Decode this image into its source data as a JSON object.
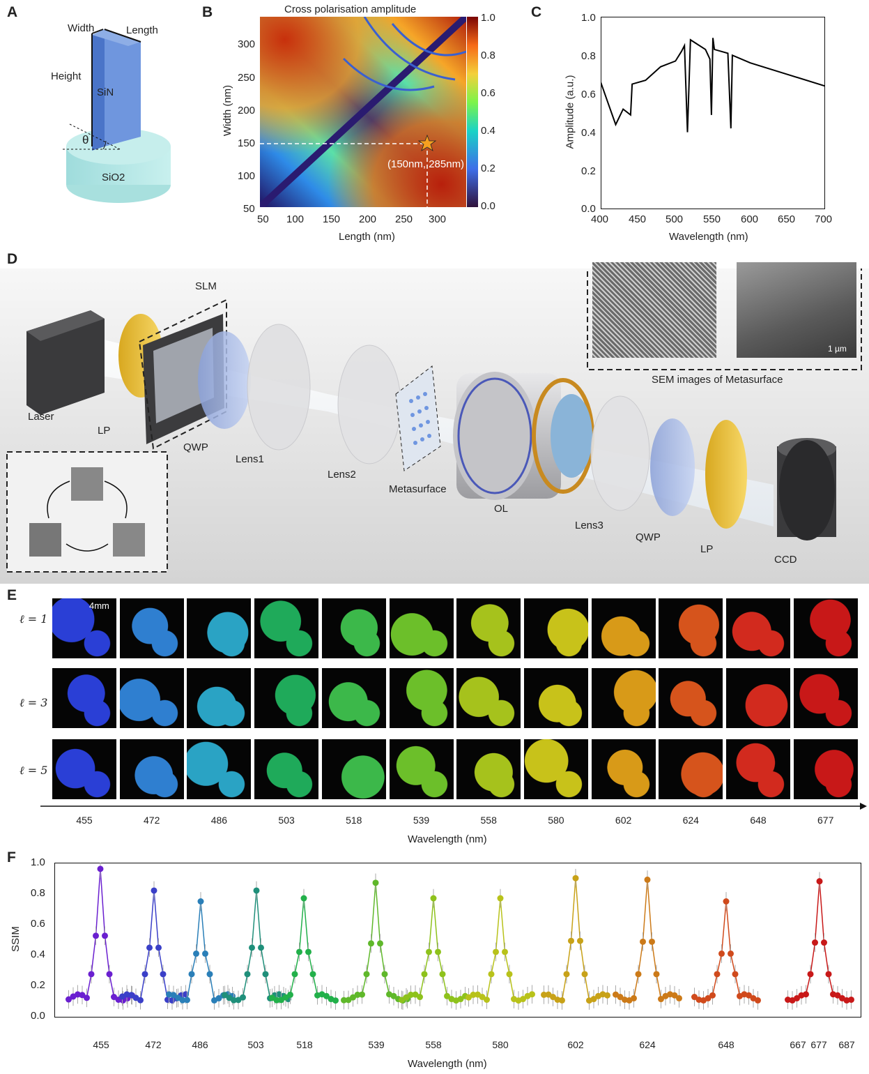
{
  "panels": {
    "a": "A",
    "b": "B",
    "c": "C",
    "d": "D",
    "e": "E",
    "f": "F"
  },
  "panel_a": {
    "width": "Width",
    "length": "Length",
    "height": "Height",
    "pillar": "SiN",
    "substrate": "SiO2",
    "theta": "θ"
  },
  "panel_b": {
    "title": "Cross polarisation amplitude",
    "xlabel": "Length (nm)",
    "ylabel": "Width (nm)",
    "xticks": [
      "50",
      "100",
      "150",
      "200",
      "250",
      "300"
    ],
    "yticks": [
      "50",
      "100",
      "150",
      "200",
      "250",
      "300"
    ],
    "cbar_ticks": [
      "1.0",
      "0.8",
      "0.6",
      "0.4",
      "0.2",
      "0.0"
    ],
    "annotation": "(150nm, 285nm)"
  },
  "panel_d": {
    "labels": {
      "laser": "Laser",
      "lp1": "LP",
      "slm": "SLM",
      "qwp1": "QWP",
      "lens1": "Lens1",
      "lens2": "Lens2",
      "meta": "Metasurface",
      "ol": "OL",
      "lens3": "Lens3",
      "qwp2": "QWP",
      "lp2": "LP",
      "ccd": "CCD"
    },
    "sem_caption": "SEM images of Metasurface",
    "scale": "1 µm"
  },
  "panel_e": {
    "rows": [
      "ℓ = 1",
      "ℓ = 3",
      "ℓ = 5"
    ],
    "scale": "4mm",
    "wavelengths": [
      "455",
      "472",
      "486",
      "503",
      "518",
      "539",
      "558",
      "580",
      "602",
      "624",
      "648",
      "677"
    ],
    "colors": [
      "#2a3fd6",
      "#2f7fd0",
      "#2aa3c4",
      "#1faa5a",
      "#3cb84a",
      "#6cbf2a",
      "#a6c21c",
      "#c8c21a",
      "#d89a18",
      "#d6541c",
      "#d22a1e",
      "#c81818"
    ],
    "xlabel": "Wavelength (nm)"
  },
  "chart_data": [
    {
      "type": "line",
      "id": "C",
      "x": [
        400,
        410,
        420,
        430,
        440,
        442,
        460,
        480,
        500,
        508,
        512,
        516,
        520,
        540,
        546,
        548,
        550,
        552,
        570,
        574,
        576,
        600,
        650,
        700
      ],
      "y": [
        0.66,
        0.55,
        0.44,
        0.52,
        0.49,
        0.65,
        0.67,
        0.74,
        0.77,
        0.82,
        0.85,
        0.4,
        0.88,
        0.83,
        0.78,
        0.49,
        0.89,
        0.83,
        0.81,
        0.42,
        0.8,
        0.76,
        0.7,
        0.64
      ],
      "xlabel": "Wavelength (nm)",
      "ylabel": "Amplitude (a.u.)",
      "xlim": [
        400,
        700
      ],
      "ylim": [
        0,
        1.0
      ],
      "xticks": [
        "400",
        "450",
        "500",
        "550",
        "600",
        "650",
        "700"
      ],
      "yticks": [
        "0.0",
        "0.2",
        "0.4",
        "0.6",
        "0.8",
        "1.0"
      ]
    },
    {
      "type": "line",
      "id": "F",
      "xlabel": "Wavelength (nm)",
      "ylabel": "SSIM",
      "ylim": [
        0,
        1.0
      ],
      "yticks": [
        "0.0",
        "0.2",
        "0.4",
        "0.6",
        "0.8",
        "1.0"
      ],
      "xticks": [
        "455",
        "472",
        "486",
        "503",
        "518",
        "539",
        "558",
        "580",
        "602",
        "624",
        "648",
        "667",
        "677",
        "687"
      ],
      "series": [
        {
          "peak": "455",
          "color": "#6a1fd0",
          "peak_value": 0.96
        },
        {
          "peak": "472",
          "color": "#3a3fc8",
          "peak_value": 0.82
        },
        {
          "peak": "486",
          "color": "#2a7fb8",
          "peak_value": 0.75
        },
        {
          "peak": "503",
          "color": "#1f8f7a",
          "peak_value": 0.82
        },
        {
          "peak": "518",
          "color": "#22b04a",
          "peak_value": 0.77
        },
        {
          "peak": "539",
          "color": "#5fb82a",
          "peak_value": 0.87
        },
        {
          "peak": "558",
          "color": "#8ec21c",
          "peak_value": 0.77
        },
        {
          "peak": "580",
          "color": "#b8c21a",
          "peak_value": 0.77
        },
        {
          "peak": "602",
          "color": "#c8a218",
          "peak_value": 0.9
        },
        {
          "peak": "624",
          "color": "#cc7a18",
          "peak_value": 0.89
        },
        {
          "peak": "648",
          "color": "#d04a1c",
          "peak_value": 0.75
        },
        {
          "peak": "677",
          "color": "#c81818",
          "peak_value": 0.88
        }
      ]
    }
  ]
}
